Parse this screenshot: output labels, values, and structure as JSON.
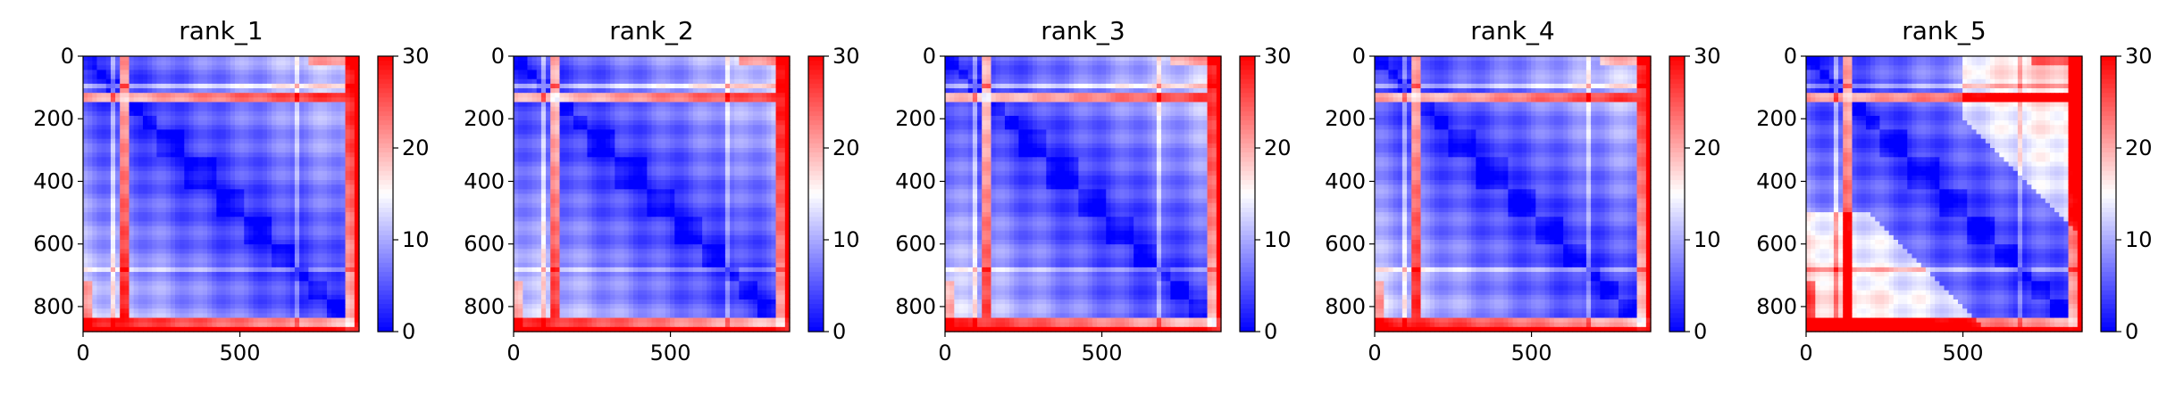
{
  "chart_data": {
    "type": "heatmap",
    "colormap": "bwr",
    "color_range": [
      0,
      30
    ],
    "colorbar_ticks": [
      0,
      10,
      20,
      30
    ],
    "n": 880,
    "x_ticks": [
      0,
      500
    ],
    "y_ticks": [
      0,
      200,
      400,
      600,
      800
    ],
    "colors": {
      "low": "#0000ff",
      "mid": "#ffffff",
      "high": "#ff0000"
    },
    "panels": [
      {
        "title": "rank_1"
      },
      {
        "title": "rank_2"
      },
      {
        "title": "rank_3"
      },
      {
        "title": "rank_4"
      },
      {
        "title": "rank_5"
      }
    ]
  }
}
